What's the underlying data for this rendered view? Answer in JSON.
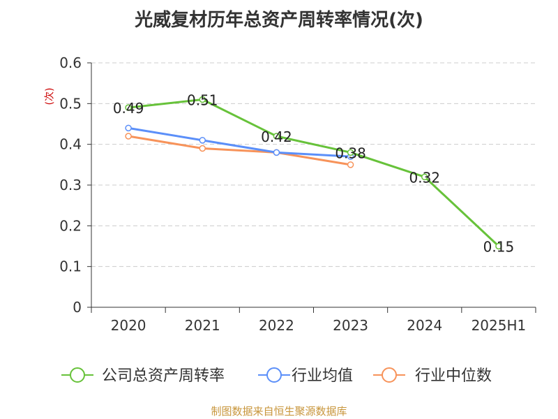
{
  "title": "光威复材历年总资产周转率情况(次)",
  "source_text": "制图数据来自恒生聚源数据库",
  "colors": {
    "series_main": "#67c23a",
    "series_avg": "#5b8ff9",
    "series_median": "#f7935a",
    "unit": "#cc0000",
    "source": "#c8963c"
  },
  "chart_data": {
    "type": "line",
    "title": "光威复材历年总资产周转率情况(次)",
    "ylabel": "(次)",
    "xlabel": "",
    "categories": [
      "2020",
      "2021",
      "2022",
      "2023",
      "2024",
      "2025H1"
    ],
    "ylim": [
      0,
      0.6
    ],
    "yticks": [
      "0",
      "0.1",
      "0.2",
      "0.3",
      "0.4",
      "0.5",
      "0.6"
    ],
    "grid": true,
    "legend_position": "bottom",
    "series": [
      {
        "name": "公司总资产周转率",
        "values": [
          0.49,
          0.51,
          0.42,
          0.38,
          0.32,
          0.15
        ],
        "labels": [
          "0.49",
          "0.51",
          "0.42",
          "0.38",
          "0.32",
          "0.15"
        ],
        "color": "#67c23a"
      },
      {
        "name": "行业均值",
        "values": [
          0.44,
          0.41,
          0.38,
          0.37,
          null,
          null
        ],
        "color": "#5b8ff9"
      },
      {
        "name": "行业中位数",
        "values": [
          0.42,
          0.39,
          0.38,
          0.35,
          null,
          null
        ],
        "color": "#f7935a"
      }
    ]
  }
}
